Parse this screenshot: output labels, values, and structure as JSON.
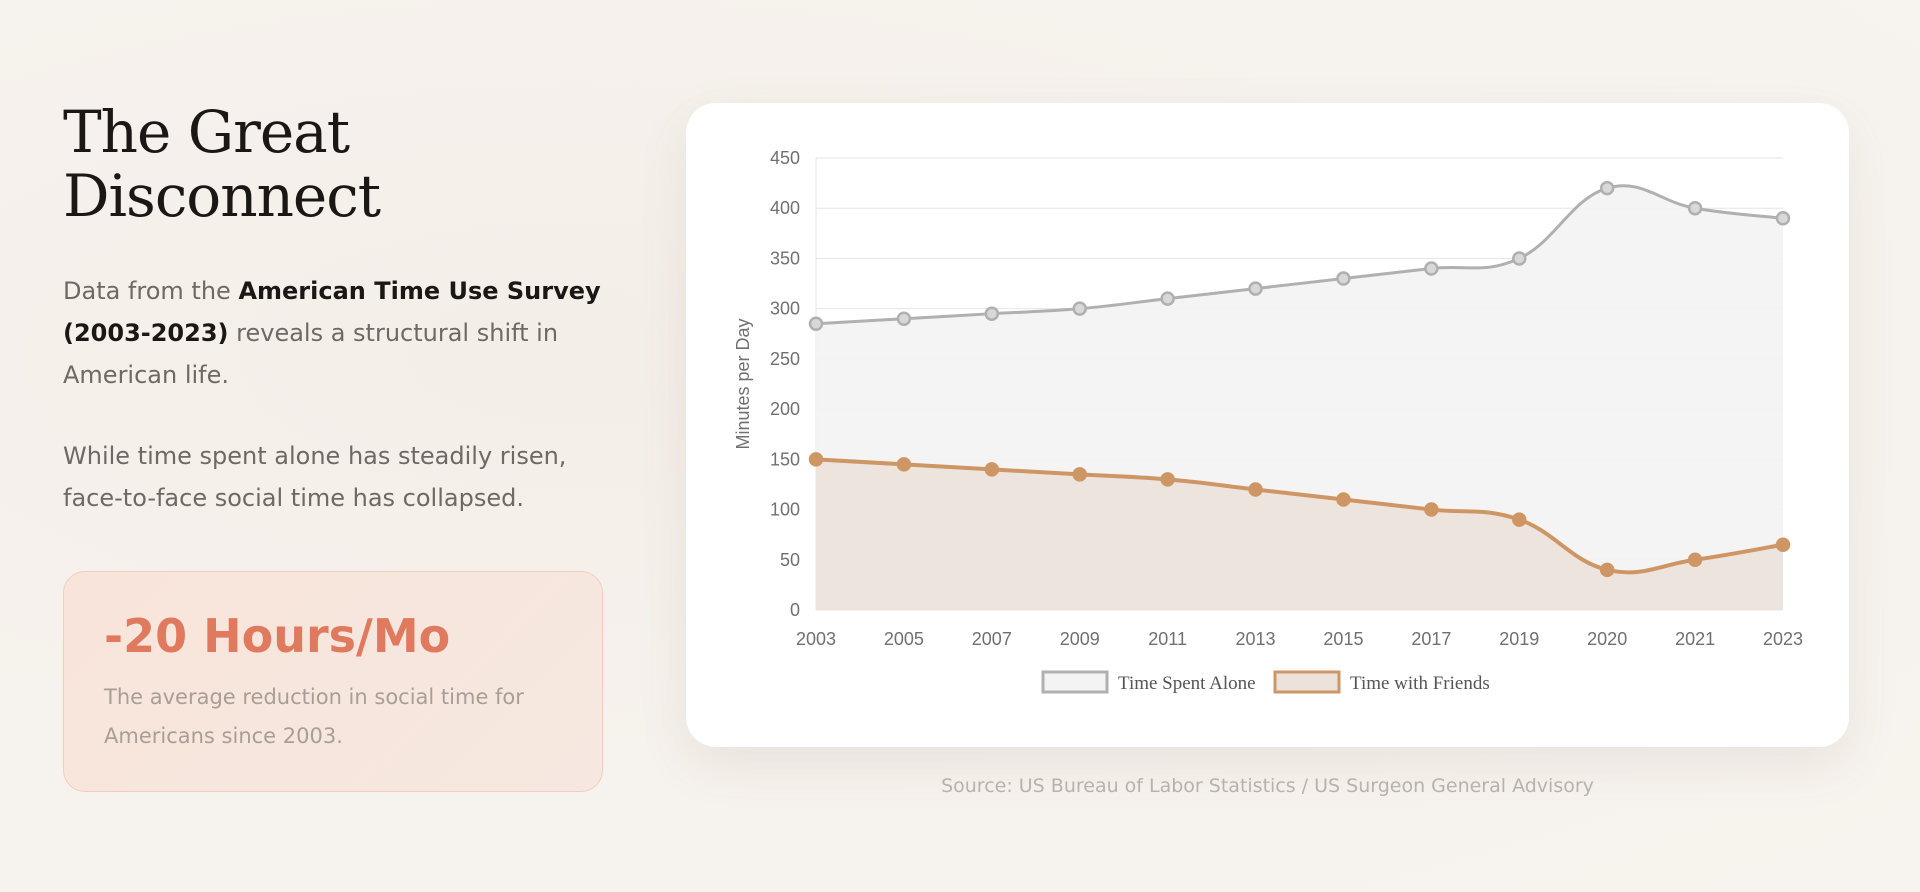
{
  "page": {
    "title_line1": "The Great",
    "title_line2": "Disconnect",
    "intro_pre": "Data from the ",
    "intro_bold": "American Time Use Survey (2003-2023)",
    "intro_post": " reveals a structural shift in American life.",
    "body": "While time spent alone has steadily risen, face-to-face social time has collapsed.",
    "stat_value": "-20 Hours/Mo",
    "stat_desc": "The average reduction in social time for Americans since 2003.",
    "source": "Source: US Bureau of Labor Statistics / US Surgeon General Advisory"
  },
  "colors": {
    "alone_line": "#b0b0b0",
    "alone_fill": "#f3f3f3",
    "friends_line": "#cf9665",
    "friends_fill": "#ede2db",
    "grid": "#e6e6e6",
    "stat_accent": "#e07a5f"
  },
  "chart_data": {
    "type": "line",
    "categories": [
      "2003",
      "2005",
      "2007",
      "2009",
      "2011",
      "2013",
      "2015",
      "2017",
      "2019",
      "2020",
      "2021",
      "2023"
    ],
    "series": [
      {
        "name": "Time Spent Alone",
        "values": [
          285,
          290,
          295,
          300,
          310,
          320,
          330,
          340,
          350,
          420,
          400,
          390
        ]
      },
      {
        "name": "Time with Friends",
        "values": [
          150,
          145,
          140,
          135,
          130,
          120,
          110,
          100,
          90,
          40,
          50,
          65
        ]
      }
    ],
    "title": "",
    "xlabel": "",
    "ylabel": "Minutes per Day",
    "ylim": [
      0,
      450
    ],
    "yticks": [
      0,
      50,
      100,
      150,
      200,
      250,
      300,
      350,
      400,
      450
    ],
    "grid": true,
    "legend": "bottom"
  }
}
